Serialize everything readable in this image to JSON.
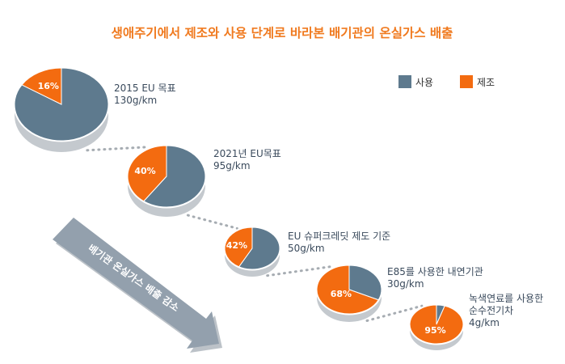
{
  "chart_data": {
    "type": "pie",
    "title": "생애주기에서 제조와 사용 단계로 바라본 배기관의 온실가스 배출",
    "legend": {
      "placement": "top-right",
      "items": [
        {
          "name": "사용",
          "color": "#5e7a8e"
        },
        {
          "name": "제조",
          "color": "#f36b10"
        }
      ]
    },
    "pies": [
      {
        "label_lines": [
          "2015 EU 목표",
          "130g/km"
        ],
        "manufacture_pct": 16,
        "pct_label": "16%"
      },
      {
        "label_lines": [
          "2021년 EU목표",
          "95g/km"
        ],
        "manufacture_pct": 40,
        "pct_label": "40%"
      },
      {
        "label_lines": [
          "EU 슈퍼크레딧 제도 기준",
          "50g/km"
        ],
        "manufacture_pct": 42,
        "pct_label": "42%"
      },
      {
        "label_lines": [
          "E85를 사용한 내연기관",
          "30g/km"
        ],
        "manufacture_pct": 68,
        "pct_label": "68%"
      },
      {
        "label_lines": [
          "녹색연료를 사용한",
          "순수전기차",
          "4g/km"
        ],
        "manufacture_pct": 95,
        "pct_label": "95%"
      }
    ],
    "arrow_text": "배기관 온실가스 배출 감소"
  }
}
